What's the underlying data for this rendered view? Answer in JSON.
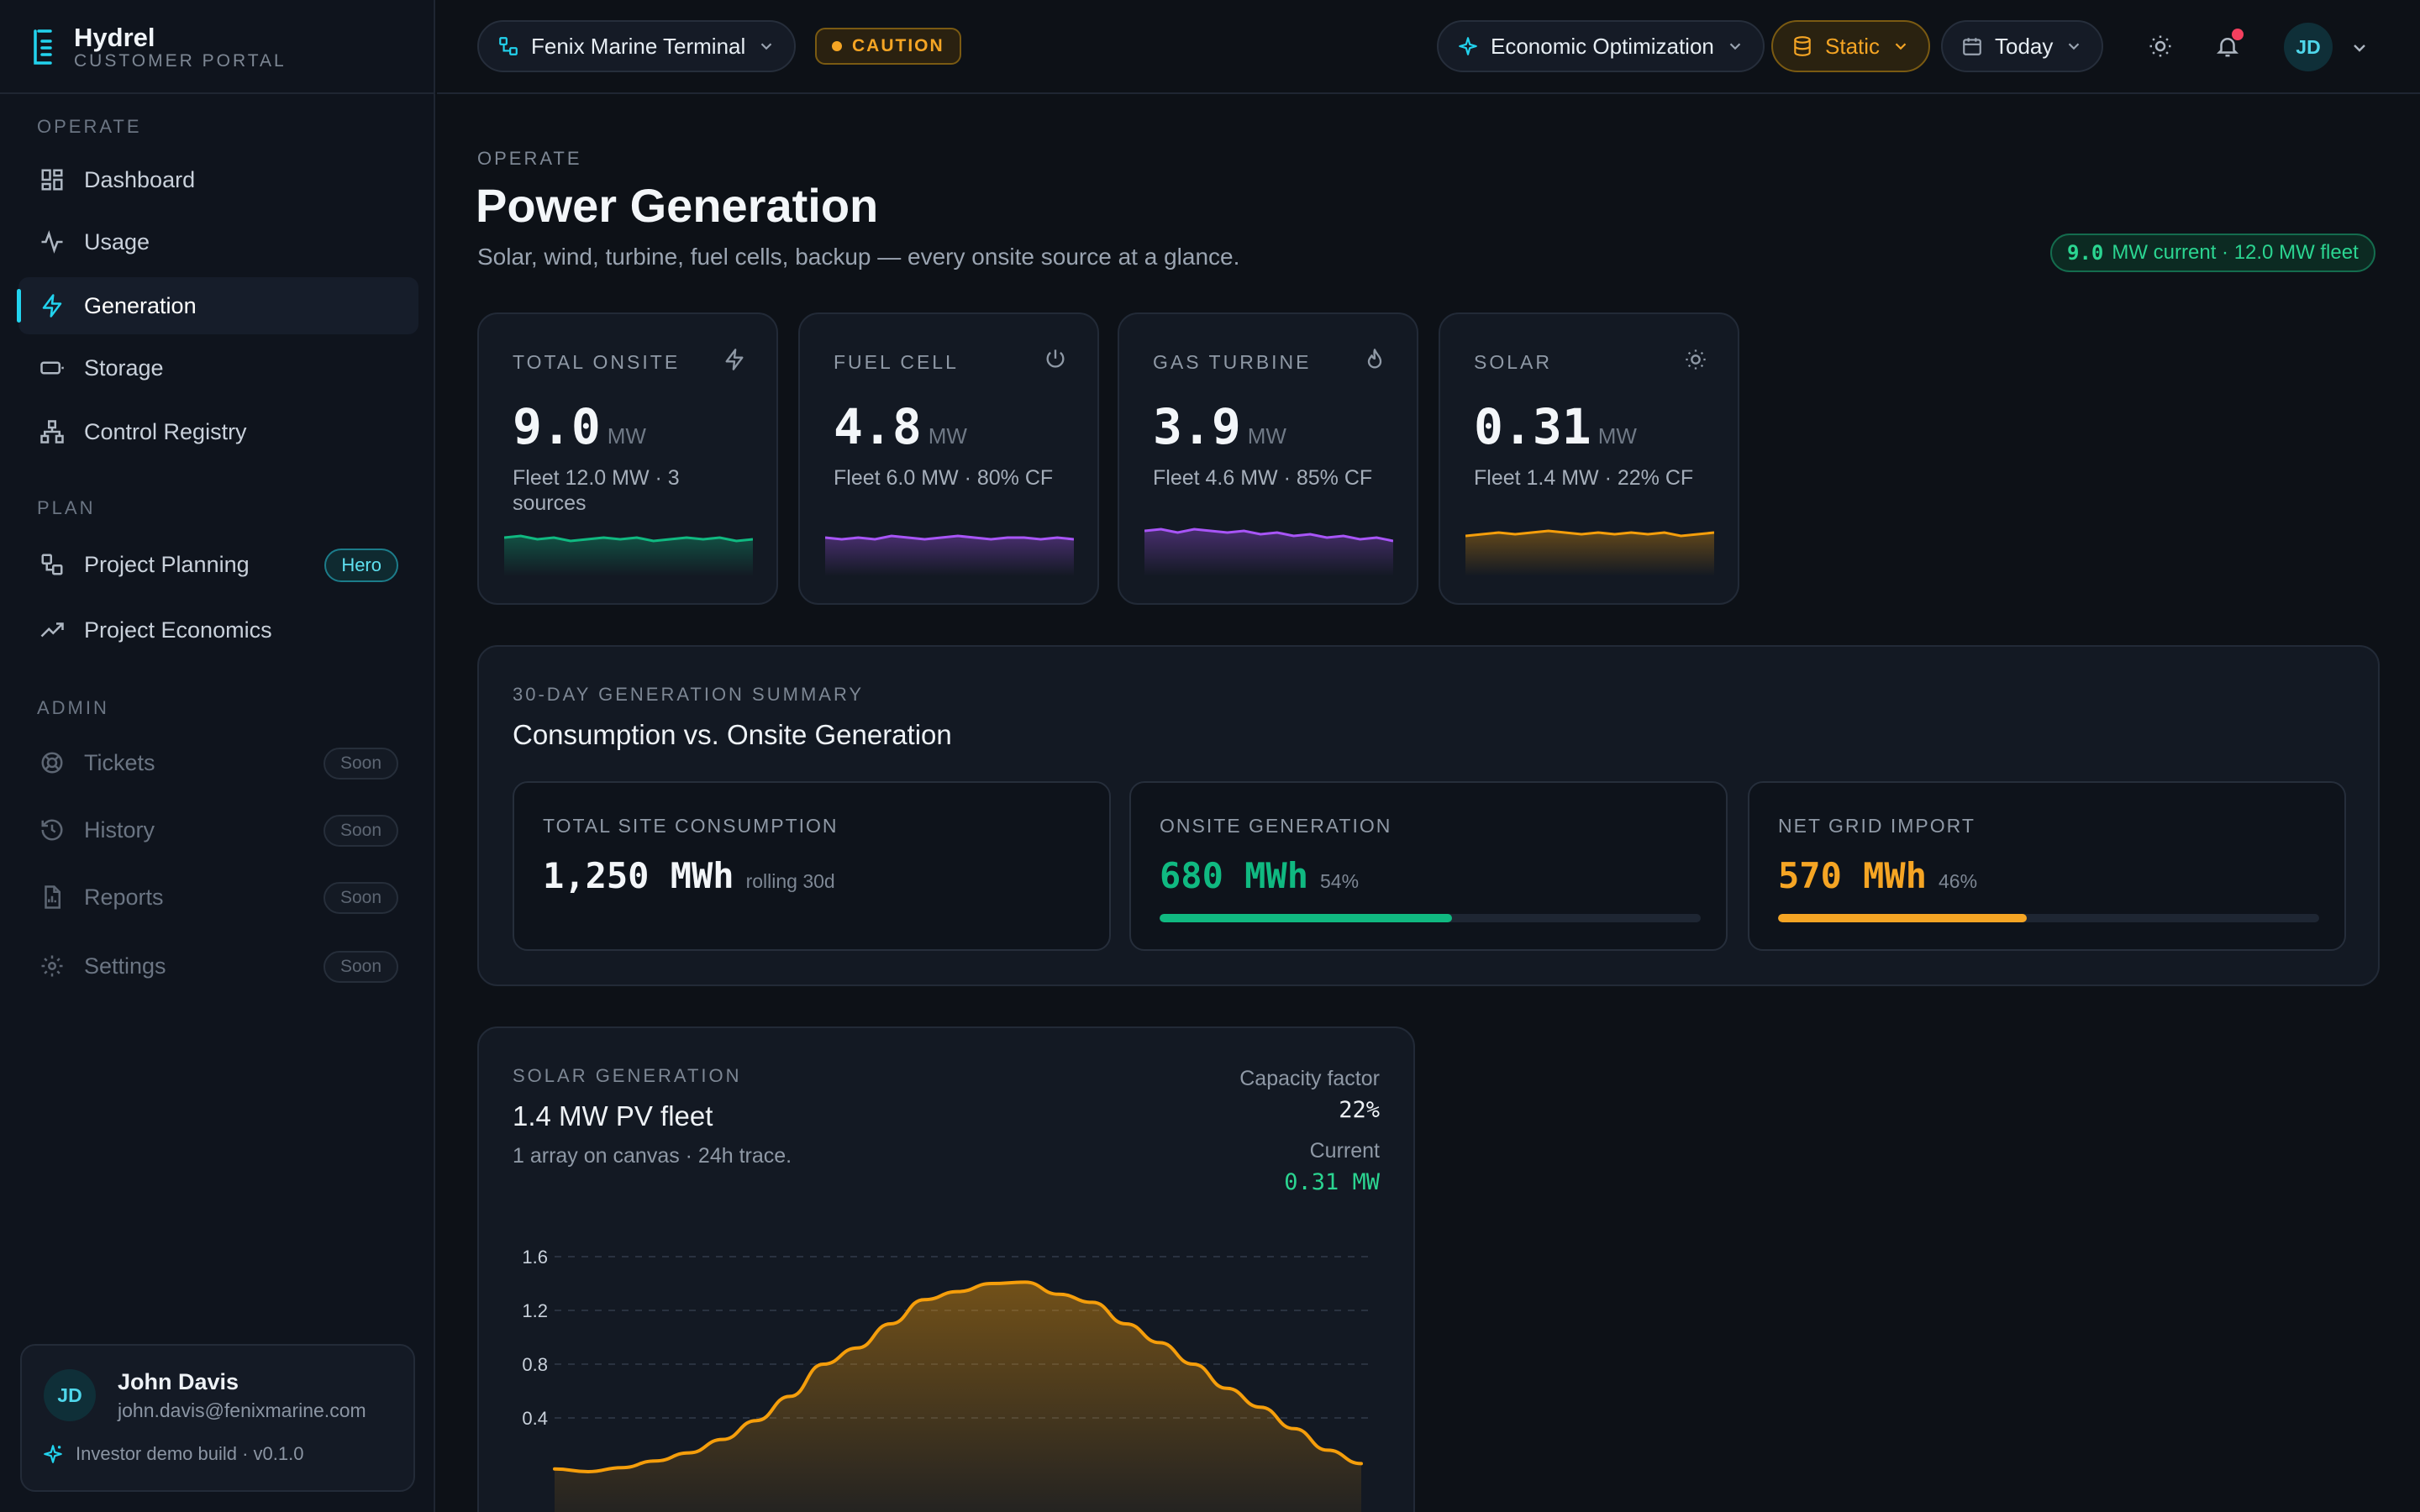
{
  "brand": {
    "name": "Hydrel",
    "subtitle": "CUSTOMER PORTAL"
  },
  "sidebar": {
    "sections": [
      {
        "label": "OPERATE"
      },
      {
        "label": "PLAN"
      },
      {
        "label": "ADMIN"
      }
    ],
    "items": [
      {
        "label": "Dashboard",
        "icon": "dashboard-icon"
      },
      {
        "label": "Usage",
        "icon": "activity-icon"
      },
      {
        "label": "Generation",
        "icon": "bolt-icon",
        "active": true
      },
      {
        "label": "Storage",
        "icon": "battery-icon"
      },
      {
        "label": "Control Registry",
        "icon": "network-icon"
      },
      {
        "label": "Project Planning",
        "icon": "workflow-icon",
        "badge": "Hero"
      },
      {
        "label": "Project Economics",
        "icon": "trending-up-icon"
      },
      {
        "label": "Tickets",
        "icon": "lifebuoy-icon",
        "badge": "Soon"
      },
      {
        "label": "History",
        "icon": "history-icon",
        "badge": "Soon"
      },
      {
        "label": "Reports",
        "icon": "report-icon",
        "badge": "Soon"
      },
      {
        "label": "Settings",
        "icon": "gear-icon",
        "badge": "Soon"
      }
    ]
  },
  "user": {
    "initials": "JD",
    "name": "John Davis",
    "email": "john.davis@fenixmarine.com",
    "build": "Investor demo build · v0.1.0"
  },
  "header": {
    "site": "Fenix Marine Terminal",
    "status": "CAUTION",
    "mode": "Economic Optimization",
    "data_source": "Static",
    "date_range": "Today"
  },
  "page": {
    "eyebrow": "OPERATE",
    "title": "Power Generation",
    "subtitle": "Solar, wind, turbine, fuel cells, backup — every onsite source at a glance.",
    "fleet_badge_value": "9.0",
    "fleet_badge_text": "MW current · 12.0 MW fleet"
  },
  "kpis": [
    {
      "label": "TOTAL ONSITE",
      "value": "9.0",
      "unit": "MW",
      "sub": "Fleet 12.0 MW · 3 sources",
      "icon": "bolt-icon",
      "color": "#10b981",
      "spark": [
        0.55,
        0.6,
        0.5,
        0.55,
        0.45,
        0.5,
        0.55,
        0.5,
        0.55,
        0.45,
        0.5,
        0.55,
        0.5,
        0.55,
        0.45,
        0.5
      ]
    },
    {
      "label": "FUEL CELL",
      "value": "4.8",
      "unit": "MW",
      "sub": "Fleet 6.0 MW · 80% CF",
      "icon": "power-icon",
      "color": "#a855f7",
      "spark": [
        0.55,
        0.5,
        0.55,
        0.5,
        0.6,
        0.55,
        0.5,
        0.55,
        0.6,
        0.55,
        0.5,
        0.55,
        0.55,
        0.5,
        0.55,
        0.5
      ]
    },
    {
      "label": "GAS TURBINE",
      "value": "3.9",
      "unit": "MW",
      "sub": "Fleet 4.6 MW · 85% CF",
      "icon": "flame-icon",
      "color": "#a855f7",
      "spark": [
        0.75,
        0.8,
        0.7,
        0.8,
        0.75,
        0.7,
        0.75,
        0.65,
        0.7,
        0.6,
        0.65,
        0.55,
        0.6,
        0.5,
        0.55,
        0.45
      ]
    },
    {
      "label": "SOLAR",
      "value": "0.31",
      "unit": "MW",
      "sub": "Fleet 1.4 MW · 22% CF",
      "icon": "sun-icon",
      "color": "#f59e0b",
      "spark": [
        0.6,
        0.65,
        0.7,
        0.65,
        0.7,
        0.75,
        0.7,
        0.65,
        0.7,
        0.65,
        0.7,
        0.65,
        0.7,
        0.6,
        0.65,
        0.7
      ]
    }
  ],
  "summary": {
    "eyebrow": "30-DAY GENERATION SUMMARY",
    "title": "Consumption vs. Onsite Generation",
    "cards": [
      {
        "label": "TOTAL SITE CONSUMPTION",
        "value": "1,250 MWh",
        "note": "rolling 30d",
        "color": "#f3f6f9"
      },
      {
        "label": "ONSITE GENERATION",
        "value": "680 MWh",
        "note": "54%",
        "color": "#10b981",
        "fraction": 0.54
      },
      {
        "label": "NET GRID IMPORT",
        "value": "570 MWh",
        "note": "46%",
        "color": "#f5a524",
        "fraction": 0.46
      }
    ]
  },
  "solar": {
    "eyebrow": "SOLAR GENERATION",
    "title": "1.4 MW PV fleet",
    "subtitle": "1 array on canvas · 24h trace.",
    "cf_label": "Capacity factor",
    "cf_value": "22%",
    "current_label": "Current",
    "current_value": "0.31 MW"
  },
  "chart_data": {
    "type": "area",
    "title": "",
    "xlabel": "",
    "ylabel": "",
    "ylim": [
      0,
      1.6
    ],
    "yticks": [
      "1.6",
      "1.2",
      "0.8",
      "0.4"
    ],
    "grid": true,
    "series": [
      {
        "color": "#f59e0b",
        "x": [
          0,
          1,
          2,
          3,
          4,
          5,
          6,
          7,
          8,
          9,
          10,
          11,
          12,
          13,
          14,
          15,
          16,
          17,
          18,
          19,
          20,
          21,
          22,
          23,
          24
        ],
        "values": [
          0.02,
          0.0,
          0.03,
          0.08,
          0.14,
          0.24,
          0.38,
          0.56,
          0.8,
          0.92,
          1.1,
          1.28,
          1.34,
          1.4,
          1.41,
          1.32,
          1.26,
          1.1,
          0.96,
          0.8,
          0.62,
          0.48,
          0.32,
          0.16,
          0.06
        ]
      }
    ]
  }
}
